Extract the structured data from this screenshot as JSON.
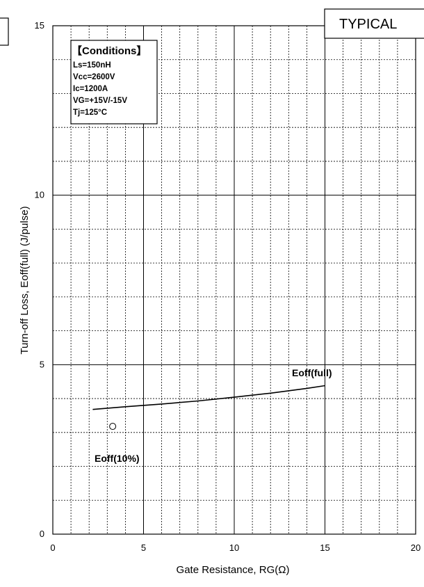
{
  "chart_data": {
    "type": "line",
    "badge": "TYPICAL",
    "xlabel": "Gate Resistance, RG(Ω)",
    "ylabel": "Turn-off Loss, Eoff(full) (J/pulse)",
    "xlim": [
      0,
      20
    ],
    "ylim": [
      0,
      15
    ],
    "x_ticks": [
      0,
      5,
      10,
      15,
      20
    ],
    "y_ticks": [
      0,
      5,
      10,
      15
    ],
    "x_minor_step": 1,
    "y_minor_step": 1,
    "grid": true,
    "conditions": {
      "title": "【Conditions】",
      "lines": [
        "Ls=150nH",
        "Vcc=2600V",
        "Ic=1200A",
        "VG=+15V/-15V",
        "Tj=125°C"
      ]
    },
    "series": [
      {
        "name": "Eoff(full)",
        "marker": "line",
        "x": [
          2.2,
          4,
          6,
          8,
          10,
          12,
          14,
          15
        ],
        "y": [
          3.68,
          3.76,
          3.84,
          3.93,
          4.04,
          4.16,
          4.3,
          4.38
        ]
      },
      {
        "name": "Eoff(10%)",
        "marker": "circle",
        "x": [
          3.3
        ],
        "y": [
          3.18
        ]
      }
    ]
  }
}
